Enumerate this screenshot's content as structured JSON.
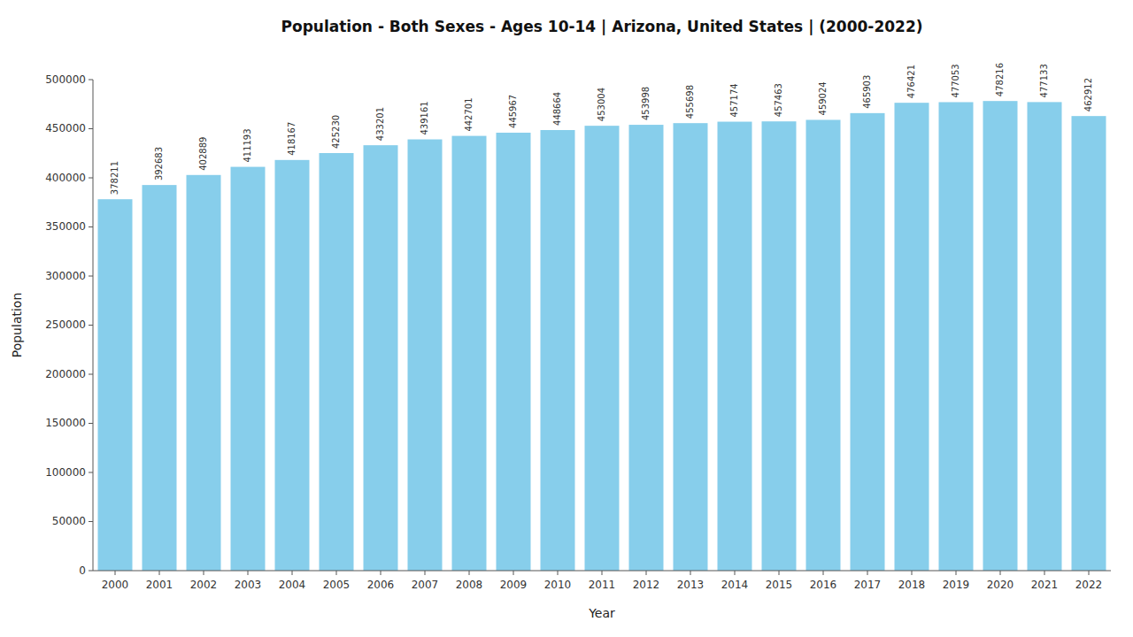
{
  "chart_data": {
    "type": "bar",
    "title": "Population - Both Sexes - Ages 10-14 | Arizona, United States |  (2000-2022)",
    "xlabel": "Year",
    "ylabel": "Population",
    "categories": [
      "2000",
      "2001",
      "2002",
      "2003",
      "2004",
      "2005",
      "2006",
      "2007",
      "2008",
      "2009",
      "2010",
      "2011",
      "2012",
      "2013",
      "2014",
      "2015",
      "2016",
      "2017",
      "2018",
      "2019",
      "2020",
      "2021",
      "2022"
    ],
    "values": [
      378211,
      392683,
      402889,
      411193,
      418167,
      425230,
      433201,
      439161,
      442701,
      445967,
      448664,
      453004,
      453998,
      455698,
      457174,
      457463,
      459024,
      465903,
      476421,
      477053,
      478216,
      477133,
      462912
    ],
    "color": "#87CEEB",
    "ylim": [
      0,
      500000
    ],
    "yticks": [
      0,
      50000,
      100000,
      150000,
      200000,
      250000,
      300000,
      350000,
      400000,
      450000,
      500000
    ],
    "data_labels": true,
    "grid": false
  }
}
